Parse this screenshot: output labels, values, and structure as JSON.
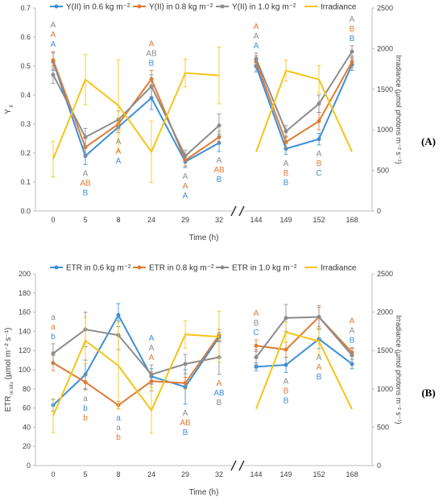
{
  "colors": {
    "c06": "#3d8fd6",
    "c08": "#e07b34",
    "c10": "#8c8c8c",
    "irr": "#f5c518"
  },
  "chart_data": [
    {
      "type": "line",
      "panel_label": "(A)",
      "categories": [
        "0",
        "5",
        "8",
        "24",
        "29",
        "32",
        "144",
        "149",
        "152",
        "168"
      ],
      "xlabel": "Time (h)",
      "ylabel": "Y",
      "ylabel_sub": "II",
      "ylim": [
        0,
        0.7
      ],
      "yticks": [
        "0.0",
        "0.1",
        "0.2",
        "0.3",
        "0.4",
        "0.5",
        "0.6",
        "0.7"
      ],
      "y2label": "Irradiance (µmol photons m⁻² s⁻¹)",
      "y2lim": [
        0,
        2500
      ],
      "y2ticks": [
        "0",
        "500",
        "1000",
        "1500",
        "2000",
        "2500"
      ],
      "series": [
        {
          "name": "Y(II) in 0.6 kg m⁻²",
          "color": "c06",
          "axis": "left",
          "values": [
            0.515,
            0.19,
            0.29,
            0.39,
            0.17,
            0.235,
            0.5,
            0.215,
            0.248,
            0.505
          ],
          "err": [
            0.03,
            0.03,
            0.02,
            0.04,
            0.02,
            0.03,
            0.02,
            0.02,
            0.02,
            0.02
          ]
        },
        {
          "name": "Y(II) in 0.8 kg m⁻²",
          "color": "c08",
          "axis": "left",
          "values": [
            0.52,
            0.22,
            0.3,
            0.455,
            0.175,
            0.255,
            0.515,
            0.238,
            0.31,
            0.515
          ],
          "err": [
            0.03,
            0.03,
            0.02,
            0.03,
            0.02,
            0.02,
            0.02,
            0.02,
            0.03,
            0.02
          ]
        },
        {
          "name": "Y(II) in 1.0 kg m⁻²",
          "color": "c10",
          "axis": "left",
          "values": [
            0.47,
            0.255,
            0.315,
            0.43,
            0.19,
            0.295,
            0.525,
            0.275,
            0.37,
            0.55
          ],
          "err": [
            0.03,
            0.03,
            0.03,
            0.04,
            0.02,
            0.04,
            0.02,
            0.02,
            0.03,
            0.02
          ]
        },
        {
          "name": "Irradiance",
          "color": "irr",
          "axis": "right",
          "values": [
            640,
            1620,
            1300,
            730,
            1700,
            1670,
            730,
            1730,
            1620,
            730
          ],
          "err": [
            220,
            310,
            560,
            380,
            170,
            350,
            0,
            130,
            170,
            0
          ]
        }
      ],
      "annotations": [
        {
          "cat": "0",
          "pos": "above",
          "letters": [
            [
              "A",
              "c10"
            ],
            [
              "A",
              "c08"
            ],
            [
              "A",
              "c06"
            ]
          ]
        },
        {
          "cat": "5",
          "pos": "below",
          "letters": [
            [
              "A",
              "c10"
            ],
            [
              "AB",
              "c08"
            ],
            [
              "B",
              "c06"
            ]
          ]
        },
        {
          "cat": "8",
          "pos": "below",
          "letters": [
            [
              "A",
              "c10"
            ],
            [
              "A",
              "c08"
            ],
            [
              "A",
              "c06"
            ]
          ]
        },
        {
          "cat": "24",
          "pos": "above",
          "letters": [
            [
              "A",
              "c08"
            ],
            [
              "AB",
              "c10"
            ],
            [
              "B",
              "c06"
            ]
          ]
        },
        {
          "cat": "29",
          "pos": "below",
          "letters": [
            [
              "A",
              "c10"
            ],
            [
              "A",
              "c08"
            ],
            [
              "A",
              "c06"
            ]
          ]
        },
        {
          "cat": "32",
          "pos": "below",
          "letters": [
            [
              "A",
              "c10"
            ],
            [
              "AB",
              "c08"
            ],
            [
              "B",
              "c06"
            ]
          ]
        },
        {
          "cat": "144",
          "pos": "above",
          "letters": [
            [
              "A",
              "c08"
            ],
            [
              "A",
              "c10"
            ],
            [
              "A",
              "c06"
            ]
          ]
        },
        {
          "cat": "149",
          "pos": "below",
          "letters": [
            [
              "A",
              "c10"
            ],
            [
              "B",
              "c08"
            ],
            [
              "B",
              "c06"
            ]
          ]
        },
        {
          "cat": "152",
          "pos": "below",
          "letters": [
            [
              "A",
              "c10"
            ],
            [
              "B",
              "c08"
            ],
            [
              "C",
              "c06"
            ]
          ]
        },
        {
          "cat": "168",
          "pos": "above",
          "letters": [
            [
              "A",
              "c10"
            ],
            [
              "B",
              "c08"
            ],
            [
              "B",
              "c06"
            ]
          ]
        }
      ]
    },
    {
      "type": "line",
      "panel_label": "(B)",
      "categories": [
        "0",
        "5",
        "8",
        "24",
        "29",
        "32",
        "144",
        "149",
        "152",
        "168"
      ],
      "xlabel": "Time (h)",
      "ylabel": "ETR",
      "ylabel_sub": "in situ",
      "ylabel_unit": "(µmol m⁻² s⁻¹)",
      "ylim": [
        0,
        200
      ],
      "yticks": [
        "0",
        "20",
        "40",
        "60",
        "80",
        "100",
        "120",
        "140",
        "160",
        "180",
        "200"
      ],
      "y2label": "Irradiance (µmol photons m⁻² s⁻¹)",
      "y2lim": [
        0,
        2500
      ],
      "y2ticks": [
        "0",
        "500",
        "1000",
        "1500",
        "2000",
        "2500"
      ],
      "series": [
        {
          "name": "ETR in 0.6 kg m⁻²",
          "color": "c06",
          "axis": "left",
          "values": [
            63,
            95,
            157,
            93,
            82,
            134,
            103,
            105,
            132,
            106
          ],
          "err": [
            6,
            15,
            12,
            8,
            18,
            5,
            4,
            8,
            10,
            5
          ]
        },
        {
          "name": "ETR in 0.8 kg m⁻²",
          "color": "c08",
          "axis": "left",
          "values": [
            107,
            87,
            63,
            88,
            86,
            136,
            125,
            121,
            155,
            118
          ],
          "err": [
            8,
            8,
            4,
            10,
            6,
            6,
            6,
            8,
            10,
            4
          ]
        },
        {
          "name": "ETR in 1.0 kg m⁻²",
          "color": "c10",
          "axis": "left",
          "values": [
            117,
            142,
            136,
            95,
            106,
            113,
            113,
            154,
            155,
            115
          ],
          "err": [
            10,
            18,
            15,
            10,
            10,
            18,
            8,
            14,
            12,
            8
          ]
        },
        {
          "name": "Irradiance",
          "color": "irr",
          "axis": "right",
          "values": [
            650,
            1630,
            1300,
            720,
            1710,
            1680,
            740,
            1740,
            1620,
            735
          ],
          "err": [
            220,
            300,
            560,
            300,
            180,
            330,
            0,
            130,
            170,
            0
          ]
        }
      ],
      "annotations": [
        {
          "cat": "0",
          "pos": "above",
          "letters": [
            [
              "a",
              "c10"
            ],
            [
              "a",
              "c08"
            ],
            [
              "b",
              "c06"
            ]
          ]
        },
        {
          "cat": "5",
          "pos": "below",
          "letters": [
            [
              "a",
              "c10"
            ],
            [
              "b",
              "c06"
            ],
            [
              "b",
              "c08"
            ]
          ]
        },
        {
          "cat": "8",
          "pos": "below",
          "letters": [
            [
              "a",
              "c06"
            ],
            [
              "a",
              "c10"
            ],
            [
              "b",
              "c08"
            ]
          ]
        },
        {
          "cat": "24",
          "pos": "above",
          "letters": [
            [
              "A",
              "c06"
            ],
            [
              "A",
              "c10"
            ],
            [
              "A",
              "c08"
            ]
          ]
        },
        {
          "cat": "29",
          "pos": "below",
          "letters": [
            [
              "A",
              "c10"
            ],
            [
              "AB",
              "c08"
            ],
            [
              "B",
              "c06"
            ]
          ]
        },
        {
          "cat": "32",
          "pos": "below",
          "letters": [
            [
              "A",
              "c08"
            ],
            [
              "AB",
              "c06"
            ],
            [
              "B",
              "c10"
            ]
          ]
        },
        {
          "cat": "144",
          "pos": "above",
          "letters": [
            [
              "A",
              "c08"
            ],
            [
              "B",
              "c10"
            ],
            [
              "C",
              "c06"
            ]
          ]
        },
        {
          "cat": "149",
          "pos": "below",
          "letters": [
            [
              "A",
              "c10"
            ],
            [
              "B",
              "c08"
            ],
            [
              "B",
              "c06"
            ]
          ]
        },
        {
          "cat": "152",
          "pos": "below",
          "letters": [
            [
              "A",
              "c10"
            ],
            [
              "A",
              "c08"
            ],
            [
              "B",
              "c06"
            ]
          ]
        },
        {
          "cat": "168",
          "pos": "above",
          "letters": [
            [
              "A",
              "c08"
            ],
            [
              "A",
              "c10"
            ],
            [
              "B",
              "c06"
            ]
          ]
        }
      ]
    }
  ]
}
